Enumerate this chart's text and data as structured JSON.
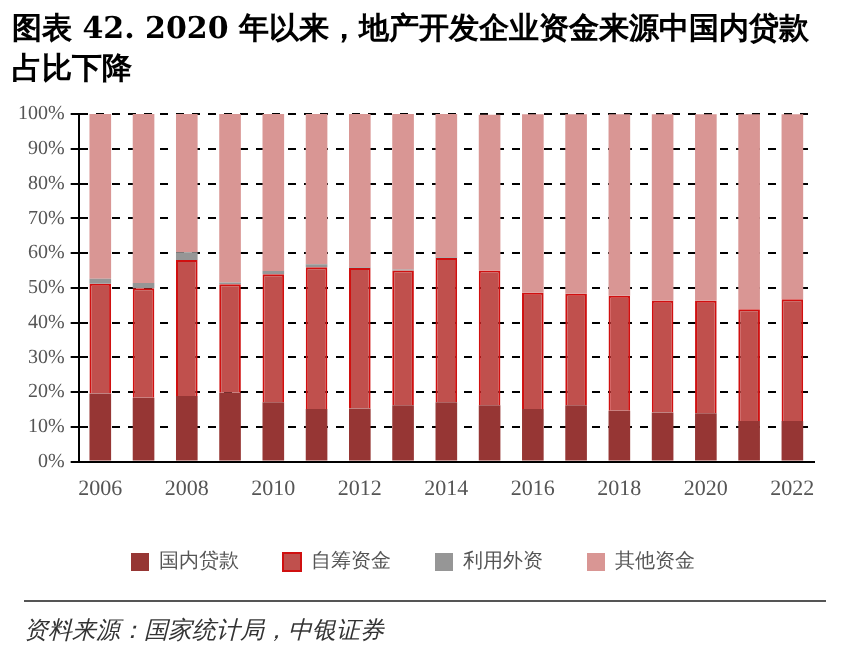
{
  "chart_data": {
    "type": "bar",
    "title": "图表 42. 2020 年以来，地产开发企业资金来源中国内贷款占比下降",
    "categories": [
      "2006",
      null,
      "2008",
      null,
      "2010",
      null,
      "2012",
      null,
      "2014",
      null,
      "2016",
      null,
      "2018",
      null,
      "2020",
      null,
      "2022"
    ],
    "series": [
      {
        "name": "国内贷款",
        "color": "#963634",
        "values": [
          19.6,
          18.4,
          18.9,
          19.8,
          17.1,
          15.1,
          15.3,
          16.2,
          17.1,
          16.2,
          15.1,
          16.2,
          14.6,
          14.1,
          13.9,
          11.7,
          11.7
        ]
      },
      {
        "name": "自筹资金",
        "color": "#c0504d",
        "values": [
          31.6,
          31.5,
          39.1,
          31.2,
          36.8,
          40.8,
          40.4,
          38.8,
          41.5,
          38.8,
          33.5,
          32.1,
          33.1,
          32.2,
          32.4,
          32.1,
          35.0
        ]
      },
      {
        "name": "利用外资",
        "color": "#969696",
        "values": [
          1.4,
          1.5,
          2.2,
          0.5,
          0.9,
          0.9,
          0.2,
          0.3,
          0.2,
          null,
          null,
          null,
          null,
          null,
          null,
          null,
          null
        ]
      },
      {
        "name": "其他资金",
        "color": "#d99694",
        "values": [
          47.4,
          48.6,
          39.8,
          48.5,
          45.2,
          43.2,
          44.1,
          44.7,
          41.2,
          44.8,
          51.3,
          51.6,
          52.2,
          53.6,
          53.6,
          56.1,
          53.2
        ]
      }
    ],
    "stacked": true,
    "ylim": [
      0,
      100
    ],
    "yticks": [
      {
        "value": 0,
        "label": "0%"
      },
      {
        "value": 10,
        "label": "10%"
      },
      {
        "value": 20,
        "label": "20%"
      },
      {
        "value": 30,
        "label": "30%"
      },
      {
        "value": 40,
        "label": "40%"
      },
      {
        "value": 50,
        "label": "50%"
      },
      {
        "value": 60,
        "label": "60%"
      },
      {
        "value": 70,
        "label": "70%"
      },
      {
        "value": 80,
        "label": "80%"
      },
      {
        "value": 90,
        "label": "90%"
      },
      {
        "value": 100,
        "label": "100%"
      }
    ],
    "grid": "y",
    "legend": "bottom",
    "annotations": [
      "资料来源：国家统计局，中银证券"
    ]
  }
}
